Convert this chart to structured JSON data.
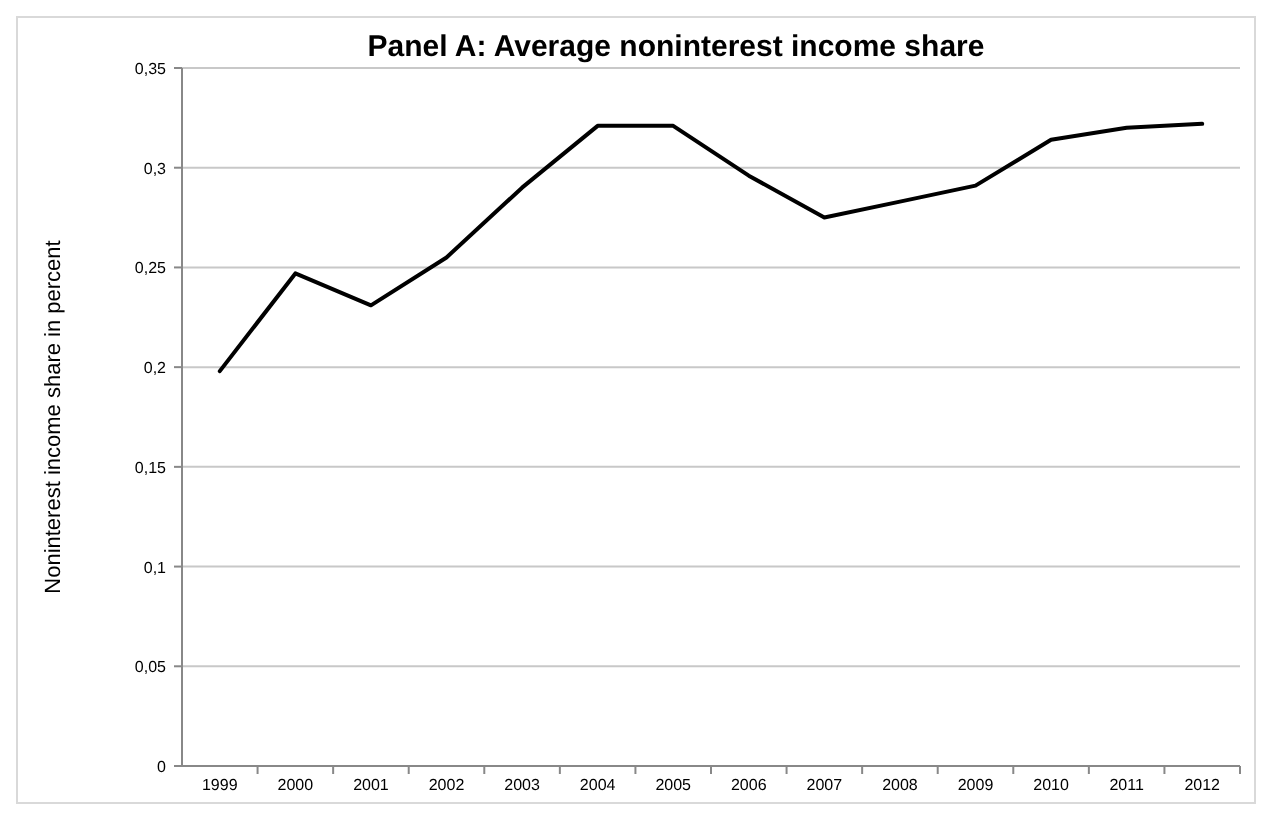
{
  "chart_data": {
    "type": "line",
    "title": "Panel A: Average noninterest income share",
    "ylabel": "Noninterest income share in percent",
    "categories": [
      "1999",
      "2000",
      "2001",
      "2002",
      "2003",
      "2004",
      "2005",
      "2006",
      "2007",
      "2008",
      "2009",
      "2010",
      "2011",
      "2012"
    ],
    "series": [
      {
        "color": "#000000",
        "values": [
          0.198,
          0.247,
          0.231,
          0.255,
          0.29,
          0.321,
          0.321,
          0.296,
          0.275,
          0.283,
          0.291,
          0.314,
          0.32,
          0.322
        ]
      }
    ],
    "ylim": [
      0,
      0.35
    ],
    "yticks": [
      0,
      {
        "value": 0.05,
        "label": "0,05"
      },
      {
        "value": 0.1,
        "label": "0,1"
      },
      {
        "value": 0.15,
        "label": "0,15"
      },
      {
        "value": 0.2,
        "label": "0,2"
      },
      {
        "value": 0.25,
        "label": "0,25"
      },
      {
        "value": 0.3,
        "label": "0,3"
      },
      {
        "value": 0.35,
        "label": "0,35"
      }
    ],
    "grid": "y",
    "marker": "none",
    "line_style": "solid"
  }
}
